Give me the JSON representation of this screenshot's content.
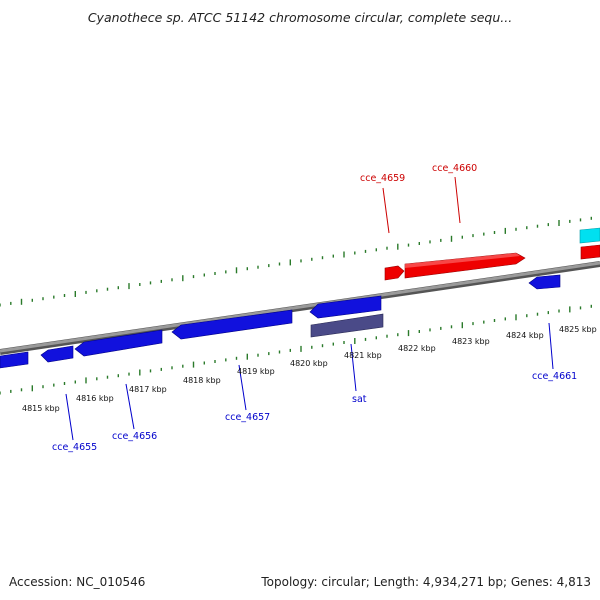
{
  "title": "Cyanothece sp. ATCC 51142 chromosome circular, complete sequ...",
  "footer": {
    "accession": "Accession: NC_010546",
    "summary": "Topology: circular; Length: 4,934,271 bp; Genes: 4,813"
  },
  "colors": {
    "forward_gene": "#ee0000",
    "reverse_gene": "#1111dd",
    "other_feature": "#00e0f0",
    "rna_feature": "#4a4a88",
    "tick": "#2a7a2a",
    "backbone": "#8a8a8a"
  },
  "kbp_labels": [
    "4815 kbp",
    "4816 kbp",
    "4817 kbp",
    "4818 kbp",
    "4819 kbp",
    "4820 kbp",
    "4821 kbp",
    "4822 kbp",
    "4823 kbp",
    "4824 kbp",
    "4825 kbp"
  ],
  "gene_labels": {
    "cce_4659": "cce_4659",
    "cce_4660": "cce_4660",
    "cce_4655": "cce_4655",
    "cce_4656": "cce_4656",
    "cce_4657": "cce_4657",
    "sat": "sat",
    "cce_4661": "cce_4661"
  }
}
